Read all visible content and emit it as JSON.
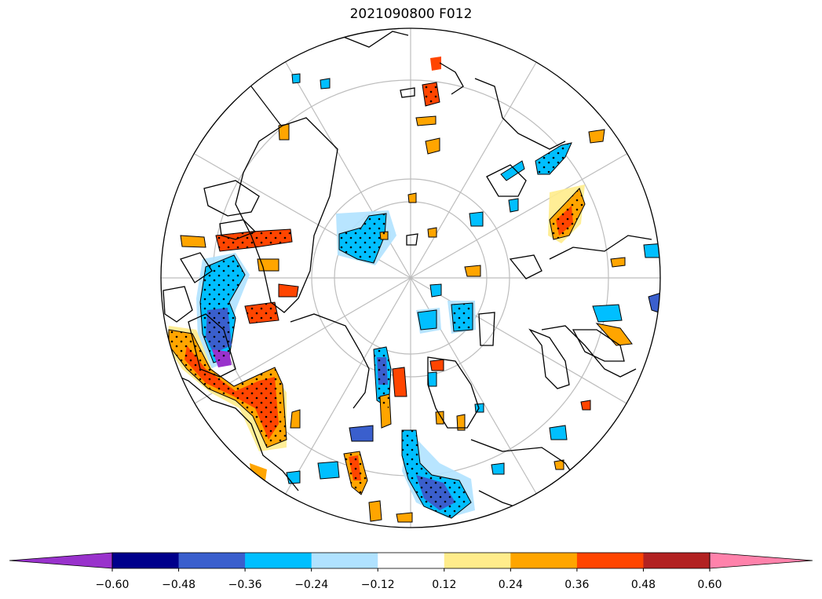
{
  "title": "2021090800 F012",
  "colorbar": {
    "levels": [
      "−0.60",
      "−0.48",
      "−0.36",
      "−0.24",
      "−0.12",
      "0.12",
      "0.24",
      "0.36",
      "0.48",
      "0.60"
    ],
    "colors": [
      "#9932CC",
      "#00008B",
      "#3A5FCD",
      "#00BFFF",
      "#B0E2FF",
      "#FFFFFF",
      "#FFEC8B",
      "#FFA500",
      "#FF4500",
      "#B22222",
      "#FF82AB"
    ],
    "extend": "both"
  },
  "map": {
    "projection": "north-polar-stereographic",
    "grid_color": "#bdbdbd",
    "coast_color": "#000000",
    "stipple": true
  }
}
